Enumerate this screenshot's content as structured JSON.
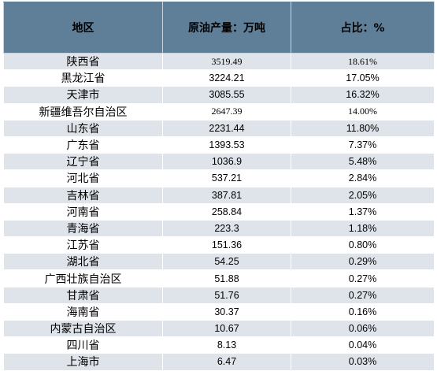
{
  "table": {
    "headers": {
      "region": "地区",
      "output": "原油产量：万吨",
      "share": "占比：%"
    },
    "rows": [
      {
        "region": "陕西省",
        "output": "3519.49",
        "share": "18.61%"
      },
      {
        "region": "黑龙江省",
        "output": "3224.21",
        "share": "17.05%"
      },
      {
        "region": "天津市",
        "output": "3085.55",
        "share": "16.32%"
      },
      {
        "region": "新疆维吾尔自治区",
        "output": "2647.39",
        "share": "14.00%"
      },
      {
        "region": "山东省",
        "output": "2231.44",
        "share": "11.80%"
      },
      {
        "region": "广东省",
        "output": "1393.53",
        "share": "7.37%"
      },
      {
        "region": "辽宁省",
        "output": "1036.9",
        "share": "5.48%"
      },
      {
        "region": "河北省",
        "output": "537.21",
        "share": "2.84%"
      },
      {
        "region": "吉林省",
        "output": "387.81",
        "share": "2.05%"
      },
      {
        "region": "河南省",
        "output": "258.84",
        "share": "1.37%"
      },
      {
        "region": "青海省",
        "output": "223.3",
        "share": "1.18%"
      },
      {
        "region": "江苏省",
        "output": "151.36",
        "share": "0.80%"
      },
      {
        "region": "湖北省",
        "output": "54.25",
        "share": "0.29%"
      },
      {
        "region": "广西壮族自治区",
        "output": "51.88",
        "share": "0.27%"
      },
      {
        "region": "甘肃省",
        "output": "51.76",
        "share": "0.27%"
      },
      {
        "region": "海南省",
        "output": "30.37",
        "share": "0.16%"
      },
      {
        "region": "内蒙古自治区",
        "output": "10.67",
        "share": "0.06%"
      },
      {
        "region": "四川省",
        "output": "8.13",
        "share": "0.04%"
      },
      {
        "region": "上海市",
        "output": "6.47",
        "share": "0.03%"
      }
    ]
  },
  "colors": {
    "header_bg": "#5f7f99",
    "band_bg": "#dee4ea",
    "row_bg": "#ffffff"
  }
}
